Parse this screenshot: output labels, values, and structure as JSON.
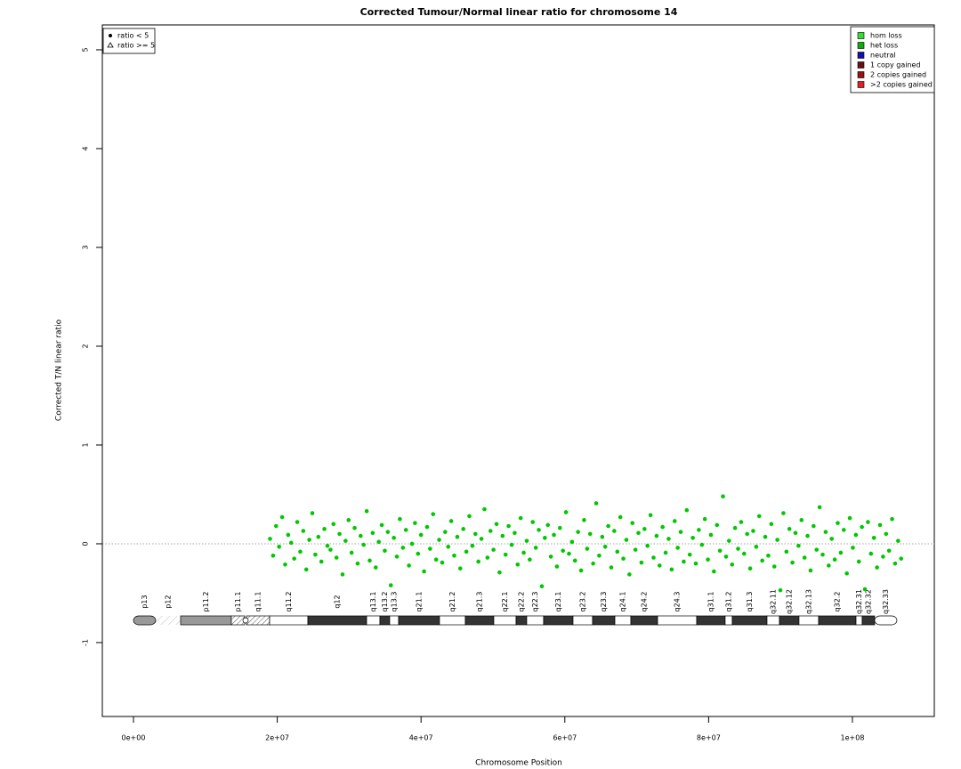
{
  "chart_data": {
    "type": "scatter",
    "title": "Corrected Tumour/Normal linear ratio for chromosome  14",
    "x_label": "Chromosome Position",
    "y_label": "Corrected T/N linear ratio",
    "xlim": [
      -4330000,
      111390000
    ],
    "ylim": [
      -1.748,
      5.252
    ],
    "xticks": [
      {
        "value": 0,
        "label": "0e+00"
      },
      {
        "value": 20000000,
        "label": "2e+07"
      },
      {
        "value": 40000000,
        "label": "4e+07"
      },
      {
        "value": 60000000,
        "label": "6e+07"
      },
      {
        "value": 80000000,
        "label": "8e+07"
      },
      {
        "value": 100000000,
        "label": "1e+08"
      }
    ],
    "yticks": [
      -1,
      0,
      1,
      2,
      3,
      4,
      5
    ],
    "hline": 0,
    "color": "#00c800",
    "x": [
      19000000.0,
      19420000.0,
      19840000.0,
      20260000.0,
      20680000.0,
      21100000.0,
      21520000.0,
      21940000.0,
      22360000.0,
      22780000.0,
      23200000.0,
      23620000.0,
      24040000.0,
      24460000.0,
      24880000.0,
      25300000.0,
      25720000.0,
      26140000.0,
      26560000.0,
      26980000.0,
      27400000.0,
      27820000.0,
      28240000.0,
      28660000.0,
      29080000.0,
      29500000.0,
      29920000.0,
      30340000.0,
      30760000.0,
      31180000.0,
      31600000.0,
      32020000.0,
      32440000.0,
      32860000.0,
      33280000.0,
      33700000.0,
      34120000.0,
      34540000.0,
      34960000.0,
      35380000.0,
      35800000.0,
      36220000.0,
      36640000.0,
      37060000.0,
      37480000.0,
      37900000.0,
      38320000.0,
      38740000.0,
      39160000.0,
      39580000.0,
      40000000.0,
      40420000.0,
      40840000.0,
      41260000.0,
      41680000.0,
      42100000.0,
      42520000.0,
      42940000.0,
      43360000.0,
      43780000.0,
      44200000.0,
      44620000.0,
      45040000.0,
      45460000.0,
      45880000.0,
      46300000.0,
      46720000.0,
      47140000.0,
      47560000.0,
      47980000.0,
      48400000.0,
      48820000.0,
      49240000.0,
      49660000.0,
      50080000.0,
      50500000.0,
      50920000.0,
      51340000.0,
      51760000.0,
      52180000.0,
      52600000.0,
      53020000.0,
      53440000.0,
      53860000.0,
      54280000.0,
      54700000.0,
      55120000.0,
      55540000.0,
      55960000.0,
      56380000.0,
      56800000.0,
      57220000.0,
      57640000.0,
      58060000.0,
      58480000.0,
      58900000.0,
      59320000.0,
      59740000.0,
      60160000.0,
      60580000.0,
      61000000.0,
      61420000.0,
      61840000.0,
      62260000.0,
      62680000.0,
      63100000.0,
      63520000.0,
      63940000.0,
      64360000.0,
      64780000.0,
      65200000.0,
      65620000.0,
      66040000.0,
      66460000.0,
      66880000.0,
      67300000.0,
      67720000.0,
      68140000.0,
      68560000.0,
      68980000.0,
      69400000.0,
      69820000.0,
      70240000.0,
      70660000.0,
      71080000.0,
      71500000.0,
      71920000.0,
      72340000.0,
      72760000.0,
      73180000.0,
      73600000.0,
      74020000.0,
      74440000.0,
      74860000.0,
      75280000.0,
      75700000.0,
      76120000.0,
      76540000.0,
      76960000.0,
      77380000.0,
      77800000.0,
      78220000.0,
      78640000.0,
      79060000.0,
      79480000.0,
      79900000.0,
      80320000.0,
      80740000.0,
      81160000.0,
      81580000.0,
      82000000.0,
      82420000.0,
      82840000.0,
      83260000.0,
      83680000.0,
      84100000.0,
      84520000.0,
      84940000.0,
      85360000.0,
      85780000.0,
      86200000.0,
      86620000.0,
      87040000.0,
      87460000.0,
      87880000.0,
      88300000.0,
      88720000.0,
      89140000.0,
      89560000.0,
      89980000.0,
      90400000.0,
      90820000.0,
      91240000.0,
      91660000.0,
      92080000.0,
      92500000.0,
      92920000.0,
      93340000.0,
      93760000.0,
      94180000.0,
      94600000.0,
      95020000.0,
      95440000.0,
      95860000.0,
      96280000.0,
      96700000.0,
      97120000.0,
      97540000.0,
      97960000.0,
      98380000.0,
      98800000.0,
      99220000.0,
      99640000.0,
      100060000.0,
      100480000.0,
      100900000.0,
      101320000.0,
      101740000.0,
      102160000.0,
      102580000.0,
      103000000.0,
      103420000.0,
      103840000.0,
      104260000.0,
      104680000.0,
      105100000.0,
      105520000.0,
      105940000.0,
      106360000.0,
      106780000.0
    ],
    "values": [
      0.05,
      -0.12,
      0.18,
      -0.03,
      0.27,
      -0.21,
      0.09,
      0.01,
      -0.15,
      0.22,
      -0.08,
      0.13,
      -0.26,
      0.04,
      0.31,
      -0.11,
      0.07,
      -0.18,
      0.15,
      -0.02,
      -0.06,
      0.2,
      -0.14,
      0.1,
      -0.31,
      0.03,
      0.24,
      -0.09,
      0.16,
      -0.2,
      0.08,
      -0.01,
      0.33,
      -0.17,
      0.11,
      -0.24,
      0.02,
      0.19,
      -0.07,
      0.12,
      -0.42,
      0.06,
      -0.13,
      0.25,
      -0.04,
      0.14,
      -0.22,
      0.0,
      0.21,
      -0.1,
      0.09,
      -0.28,
      0.17,
      -0.05,
      0.3,
      -0.16,
      0.04,
      -0.19,
      0.12,
      -0.03,
      0.23,
      -0.12,
      0.07,
      -0.25,
      0.15,
      -0.08,
      0.28,
      -0.02,
      0.1,
      -0.18,
      0.05,
      0.35,
      -0.14,
      0.13,
      -0.06,
      0.2,
      -0.29,
      0.08,
      -0.11,
      0.18,
      -0.01,
      0.11,
      -0.21,
      0.26,
      -0.09,
      0.03,
      -0.16,
      0.22,
      -0.04,
      0.14,
      -0.43,
      0.06,
      0.19,
      -0.13,
      0.09,
      -0.23,
      0.16,
      -0.07,
      0.32,
      -0.1,
      0.02,
      -0.17,
      0.12,
      -0.27,
      0.24,
      -0.05,
      0.1,
      -0.2,
      0.41,
      -0.12,
      0.07,
      -0.03,
      0.18,
      -0.24,
      0.13,
      -0.08,
      0.27,
      -0.15,
      0.04,
      -0.31,
      0.21,
      -0.06,
      0.11,
      -0.19,
      0.15,
      -0.02,
      0.29,
      -0.14,
      0.08,
      -0.22,
      0.17,
      -0.09,
      0.05,
      -0.26,
      0.23,
      -0.04,
      0.12,
      -0.18,
      0.34,
      -0.11,
      0.06,
      -0.2,
      0.14,
      -0.01,
      0.25,
      -0.16,
      0.09,
      -0.28,
      0.19,
      -0.07,
      0.48,
      -0.13,
      0.03,
      -0.21,
      0.16,
      -0.05,
      0.22,
      -0.1,
      0.1,
      -0.25,
      0.13,
      -0.03,
      0.28,
      -0.17,
      0.07,
      -0.12,
      0.2,
      -0.23,
      0.04,
      -0.47,
      0.31,
      -0.08,
      0.15,
      -0.19,
      0.11,
      -0.02,
      0.24,
      -0.14,
      0.08,
      -0.27,
      0.18,
      -0.06,
      0.37,
      -0.11,
      0.12,
      -0.22,
      0.05,
      -0.16,
      0.21,
      -0.09,
      0.14,
      -0.3,
      0.26,
      -0.04,
      0.09,
      -0.18,
      0.17,
      -0.46,
      0.22,
      -0.1,
      0.06,
      -0.24,
      0.19,
      -0.13,
      0.1,
      -0.07,
      0.25,
      -0.2,
      0.03,
      -0.15
    ],
    "shape_legend": [
      "ratio < 5",
      "ratio >= 5"
    ],
    "shape_legend_position": "top-left",
    "legend": [
      {
        "label": "hom loss",
        "color": "#33dd33"
      },
      {
        "label": "het loss",
        "color": "#11aa11"
      },
      {
        "label": "neutral",
        "color": "#1111aa"
      },
      {
        "label": "1 copy gained",
        "color": "#661111"
      },
      {
        "label": "2 copies gained",
        "color": "#991111"
      },
      {
        "label": ">2 copies gained",
        "color": "#dd2222"
      }
    ],
    "legend_position": "top-right",
    "stain_colors": {
      "gvar": "#999999",
      "stalk": "hatch",
      "gpos50": "#999999",
      "acen": "hatch",
      "gneg": "#ffffff",
      "gpos100": "#333333"
    },
    "bands": [
      {
        "name": "p13",
        "start": 0,
        "end": 3090000,
        "stain": "gvar"
      },
      {
        "name": "p12",
        "start": 3090000,
        "end": 6560000,
        "stain": "stalk"
      },
      {
        "name": "p11.2",
        "start": 6560000,
        "end": 13610000,
        "stain": "gpos50"
      },
      {
        "name": "p11.1",
        "start": 13610000,
        "end": 15470000,
        "stain": "acen"
      },
      {
        "name": "q11.1",
        "start": 15720000,
        "end": 18940000,
        "stain": "acen"
      },
      {
        "name": "q11.2",
        "start": 18940000,
        "end": 24260000,
        "stain": "gneg"
      },
      {
        "name": "q12",
        "start": 24260000,
        "end": 32430000,
        "stain": "gpos100"
      },
      {
        "name": "q13.1",
        "start": 32430000,
        "end": 34280000,
        "stain": "gneg"
      },
      {
        "name": "q13.2",
        "start": 34280000,
        "end": 35640000,
        "stain": "gpos100"
      },
      {
        "name": "q13.3",
        "start": 35640000,
        "end": 36880000,
        "stain": "gneg"
      },
      {
        "name": "q21.1",
        "start": 36880000,
        "end": 42570000,
        "stain": "gpos100"
      },
      {
        "name": "q21.2",
        "start": 42570000,
        "end": 46160000,
        "stain": "gneg"
      },
      {
        "name": "q21.3",
        "start": 46160000,
        "end": 50120000,
        "stain": "gpos100"
      },
      {
        "name": "q22.1",
        "start": 50120000,
        "end": 53220000,
        "stain": "gneg"
      },
      {
        "name": "q22.2",
        "start": 53220000,
        "end": 54700000,
        "stain": "gpos100"
      },
      {
        "name": "q22.3",
        "start": 54700000,
        "end": 57050000,
        "stain": "gneg"
      },
      {
        "name": "q23.1",
        "start": 57050000,
        "end": 61140000,
        "stain": "gpos100"
      },
      {
        "name": "q23.2",
        "start": 61140000,
        "end": 63860000,
        "stain": "gneg"
      },
      {
        "name": "q23.3",
        "start": 63860000,
        "end": 66960000,
        "stain": "gpos100"
      },
      {
        "name": "q24.1",
        "start": 66960000,
        "end": 69180000,
        "stain": "gneg"
      },
      {
        "name": "q24.2",
        "start": 69180000,
        "end": 72900000,
        "stain": "gpos100"
      },
      {
        "name": "q24.3",
        "start": 72900000,
        "end": 78340000,
        "stain": "gneg"
      },
      {
        "name": "q31.1",
        "start": 78340000,
        "end": 82300000,
        "stain": "gpos100"
      },
      {
        "name": "q31.2",
        "start": 82300000,
        "end": 83290000,
        "stain": "gneg"
      },
      {
        "name": "q31.3",
        "start": 83290000,
        "end": 88120000,
        "stain": "gpos100"
      },
      {
        "name": "q32.11",
        "start": 88120000,
        "end": 89850000,
        "stain": "gneg"
      },
      {
        "name": "q32.12",
        "start": 89850000,
        "end": 92570000,
        "stain": "gpos100"
      },
      {
        "name": "q32.13",
        "start": 92570000,
        "end": 95300000,
        "stain": "gneg"
      },
      {
        "name": "q32.2",
        "start": 95300000,
        "end": 100500000,
        "stain": "gpos100"
      },
      {
        "name": "q32.31",
        "start": 100500000,
        "end": 101360000,
        "stain": "gneg"
      },
      {
        "name": "q32.32",
        "start": 101360000,
        "end": 103090000,
        "stain": "gpos100"
      },
      {
        "name": "q32.33",
        "start": 103090000,
        "end": 106190000,
        "stain": "gneg"
      }
    ]
  }
}
